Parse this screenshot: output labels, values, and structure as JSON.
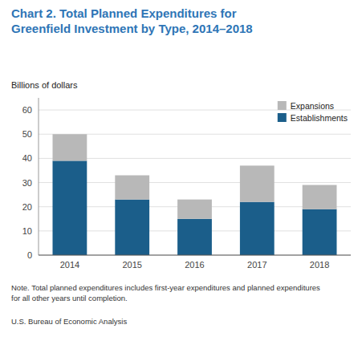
{
  "chart_data": {
    "type": "bar",
    "stacked": true,
    "title": "Chart 2. Total Planned Expenditures for\nGreenfield Investment by Type, 2014–2018",
    "ylabel": "Billions of dollars",
    "note": "Note. Total planned expenditures includes first-year expenditures and planned expenditures\nfor all other years until completion.",
    "source": "U.S. Bureau of Economic Analysis",
    "categories": [
      "2014",
      "2015",
      "2016",
      "2017",
      "2018"
    ],
    "series": [
      {
        "name": "Establishments",
        "color": "#1b5e8a",
        "values": [
          39,
          23,
          15,
          22,
          19
        ]
      },
      {
        "name": "Expansions",
        "color": "#b8b8b8",
        "values": [
          11,
          10,
          8,
          15,
          10
        ]
      }
    ],
    "ylim": [
      0,
      65
    ],
    "yticks": [
      0,
      10,
      20,
      30,
      40,
      50,
      60
    ],
    "grid": true,
    "legend": "upper right",
    "title_color": "#2e75b6"
  }
}
